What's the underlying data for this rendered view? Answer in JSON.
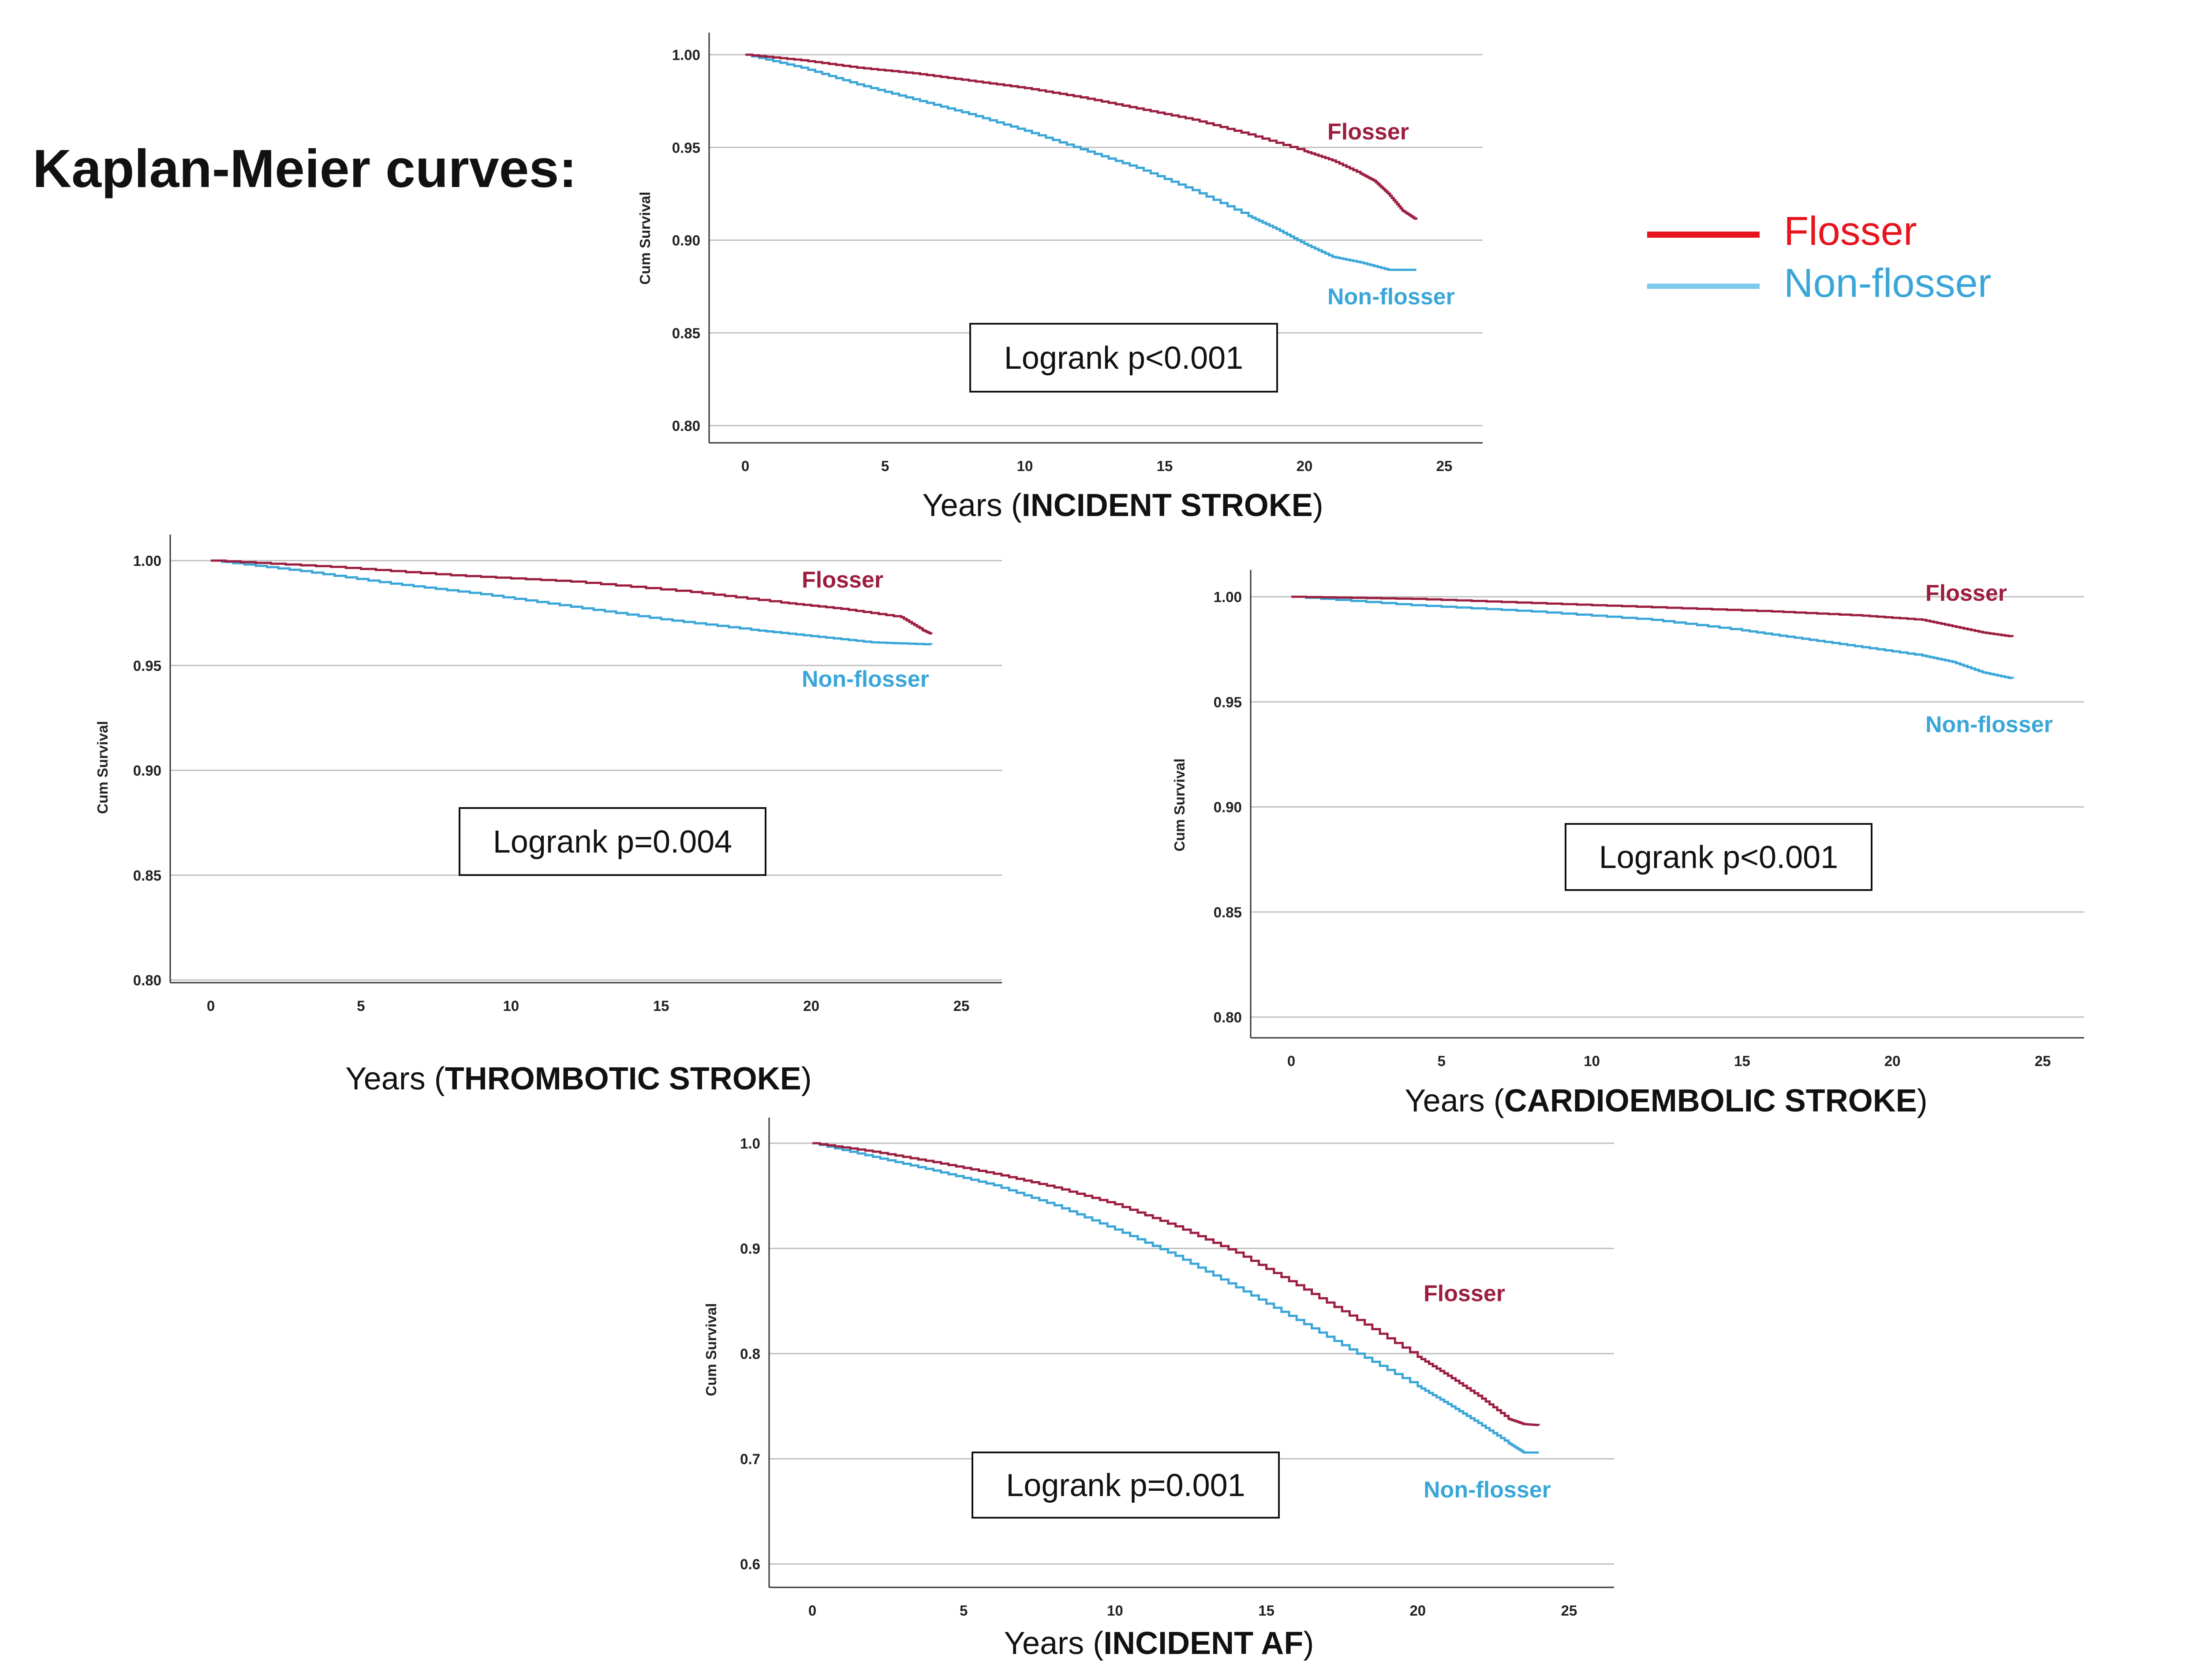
{
  "page_title": "Kaplan-Meier curves:",
  "colors": {
    "flosser": "#9b1d3f",
    "non_flosser": "#3aa6d8",
    "legend_flosser": "#e8141d",
    "legend_non_flosser": "#7ec8ea",
    "grid": "#bfbfbf",
    "axis": "#333333"
  },
  "legend": {
    "flosser": "Flosser",
    "non_flosser": "Non-flosser"
  },
  "chart_data": [
    {
      "id": "incident-stroke",
      "type": "line",
      "title": "Kaplan-Meier curve",
      "xlabel": "Years (",
      "xlabel_bold": "INCIDENT STROKE",
      "xlabel_end": ")",
      "ylabel": "Cum Survival",
      "xlim": [
        0,
        25
      ],
      "ylim": [
        0.8,
        1.0
      ],
      "x_ticks": [
        0,
        5,
        10,
        15,
        20,
        25
      ],
      "x_tick_labels": [
        "0",
        "5",
        "10",
        "15",
        "20",
        "25"
      ],
      "y_ticks": [
        0.8,
        0.85,
        0.9,
        0.95,
        1.0
      ],
      "y_tick_labels": [
        "0.80",
        "0.85",
        "0.90",
        "0.95",
        "1.00"
      ],
      "grid": true,
      "annotation": "Logrank p<0.001",
      "series": [
        {
          "name": "Flosser",
          "label": "Flosser",
          "x": [
            0,
            2,
            4,
            6,
            8,
            10,
            12,
            14,
            16,
            18,
            20,
            21,
            22,
            22.5,
            23,
            23.5,
            24
          ],
          "values": [
            1.0,
            0.997,
            0.993,
            0.99,
            0.986,
            0.982,
            0.977,
            0.971,
            0.965,
            0.957,
            0.948,
            0.943,
            0.936,
            0.932,
            0.925,
            0.916,
            0.911
          ]
        },
        {
          "name": "Non-flosser",
          "label": "Non-flosser",
          "x": [
            0,
            2,
            4,
            6,
            8,
            10,
            12,
            14,
            16,
            18,
            19,
            20,
            21,
            22,
            23,
            24
          ],
          "values": [
            1.0,
            0.993,
            0.984,
            0.976,
            0.968,
            0.959,
            0.949,
            0.939,
            0.927,
            0.913,
            0.906,
            0.898,
            0.891,
            0.888,
            0.884,
            0.884
          ]
        }
      ]
    },
    {
      "id": "thrombotic-stroke",
      "type": "line",
      "xlabel": "Years (",
      "xlabel_bold": "THROMBOTIC STROKE",
      "xlabel_end": ")",
      "ylabel": "Cum Survival",
      "xlim": [
        0,
        25
      ],
      "ylim": [
        0.8,
        1.0
      ],
      "x_ticks": [
        0,
        5,
        10,
        15,
        20,
        25
      ],
      "x_tick_labels": [
        "0",
        "5",
        "10",
        "15",
        "20",
        "25"
      ],
      "y_ticks": [
        0.8,
        0.85,
        0.9,
        0.95,
        1.0
      ],
      "y_tick_labels": [
        "0.80",
        "0.85",
        "0.90",
        "0.95",
        "1.00"
      ],
      "grid": true,
      "annotation": "Logrank p=0.004",
      "series": [
        {
          "name": "Flosser",
          "label": "Flosser",
          "x": [
            0,
            4,
            8,
            12,
            16,
            19,
            21,
            23,
            23.7,
            24
          ],
          "values": [
            1.0,
            0.997,
            0.993,
            0.99,
            0.985,
            0.98,
            0.977,
            0.973,
            0.967,
            0.965
          ]
        },
        {
          "name": "Non-flosser",
          "label": "Non-flosser",
          "x": [
            0,
            3,
            6,
            9,
            12,
            15,
            18,
            20,
            22,
            24
          ],
          "values": [
            1.0,
            0.995,
            0.989,
            0.984,
            0.978,
            0.972,
            0.967,
            0.964,
            0.961,
            0.96
          ]
        }
      ]
    },
    {
      "id": "cardioembolic-stroke",
      "type": "line",
      "xlabel": "Years (",
      "xlabel_bold": "CARDIOEMBOLIC STROKE",
      "xlabel_end": ")",
      "ylabel": "Cum Survival",
      "xlim": [
        0,
        25
      ],
      "ylim": [
        0.8,
        1.0
      ],
      "x_ticks": [
        0,
        5,
        10,
        15,
        20,
        25
      ],
      "x_tick_labels": [
        "0",
        "5",
        "10",
        "15",
        "20",
        "25"
      ],
      "y_ticks": [
        0.8,
        0.85,
        0.9,
        0.95,
        1.0
      ],
      "y_tick_labels": [
        "0.80",
        "0.85",
        "0.90",
        "0.95",
        "1.00"
      ],
      "grid": true,
      "annotation": "Logrank p<0.001",
      "series": [
        {
          "name": "Flosser",
          "label": "Flosser",
          "x": [
            0,
            4,
            8,
            12,
            16,
            19,
            21,
            22,
            23,
            24
          ],
          "values": [
            1.0,
            0.999,
            0.997,
            0.995,
            0.993,
            0.991,
            0.989,
            0.986,
            0.983,
            0.981
          ]
        },
        {
          "name": "Non-flosser",
          "label": "Non-flosser",
          "x": [
            0,
            4,
            8,
            12,
            15,
            17,
            19,
            21,
            22,
            23,
            24
          ],
          "values": [
            1.0,
            0.996,
            0.993,
            0.989,
            0.984,
            0.98,
            0.976,
            0.972,
            0.969,
            0.964,
            0.961
          ]
        }
      ]
    },
    {
      "id": "incident-af",
      "type": "line",
      "xlabel": "Years (",
      "xlabel_bold": "INCIDENT AF",
      "xlabel_end": ")",
      "ylabel": "Cum Survival",
      "xlim": [
        0,
        25
      ],
      "ylim": [
        0.6,
        1.0
      ],
      "x_ticks": [
        0,
        5,
        10,
        15,
        20,
        25
      ],
      "x_tick_labels": [
        "0",
        "5",
        "10",
        "15",
        "20",
        "25"
      ],
      "y_ticks": [
        0.6,
        0.7,
        0.8,
        0.9,
        1.0
      ],
      "y_tick_labels": [
        "0.6",
        "0.7",
        "0.8",
        "0.9",
        "1.0"
      ],
      "grid": true,
      "annotation": "Logrank p=0.001",
      "series": [
        {
          "name": "Flosser",
          "label": "Flosser",
          "x": [
            0,
            2,
            4,
            6,
            8,
            10,
            12,
            14,
            16,
            18,
            20,
            21,
            22,
            23,
            23.5,
            24
          ],
          "values": [
            1.0,
            0.992,
            0.982,
            0.971,
            0.958,
            0.942,
            0.921,
            0.896,
            0.865,
            0.832,
            0.797,
            0.779,
            0.76,
            0.738,
            0.733,
            0.732
          ]
        },
        {
          "name": "Non-flosser",
          "label": "Non-flosser",
          "x": [
            0,
            2,
            4,
            6,
            8,
            10,
            12,
            14,
            16,
            18,
            20,
            21,
            22,
            23,
            23.5,
            24
          ],
          "values": [
            1.0,
            0.987,
            0.974,
            0.96,
            0.941,
            0.918,
            0.893,
            0.863,
            0.832,
            0.8,
            0.769,
            0.752,
            0.734,
            0.715,
            0.706,
            0.706
          ]
        }
      ]
    }
  ]
}
